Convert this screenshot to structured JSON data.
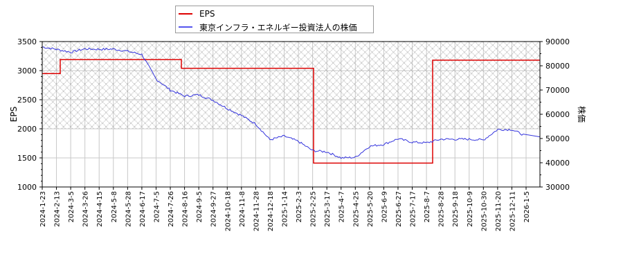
{
  "legend": {
    "items": [
      {
        "label": "EPS",
        "color": "#dd0000"
      },
      {
        "label": "東京インフラ・エネルギー投資法人の株価",
        "color": "#3333dd"
      }
    ]
  },
  "axes": {
    "left_label": "EPS",
    "right_label": "株価",
    "left_ticks": [
      "3500",
      "3000",
      "2500",
      "2000",
      "1500",
      "1000"
    ],
    "right_ticks": [
      "90000",
      "80000",
      "70000",
      "60000",
      "50000",
      "40000",
      "30000"
    ],
    "x_ticks": [
      "2024-1-23",
      "2024-2-13",
      "2024-3-5",
      "2024-3-26",
      "2024-4-15",
      "2024-5-8",
      "2024-5-28",
      "2024-6-17",
      "2024-7-5",
      "2024-7-26",
      "2024-8-16",
      "2024-9-5",
      "2024-9-27",
      "2024-10-18",
      "2024-11-8",
      "2024-11-28",
      "2024-12-18",
      "2025-1-14",
      "2025-2-3",
      "2025-2-25",
      "2025-3-17",
      "2025-4-7",
      "2025-4-25",
      "2025-5-20",
      "2025-6-9",
      "2025-6-27",
      "2025-7-17",
      "2025-8-7",
      "2025-8-28",
      "2025-9-18",
      "2025-10-9",
      "2025-10-30",
      "2025-11-20",
      "2025-12-11",
      "2026-1-5"
    ]
  },
  "chart_data": {
    "type": "line",
    "title": "",
    "xlabel": "",
    "ylabel": "EPS",
    "ylabel_right": "株価",
    "ylim": [
      1000,
      3500
    ],
    "ylim_right": [
      30000,
      90000
    ],
    "grid": true,
    "legend_position": "top-center",
    "shaded_region": {
      "axis": "left",
      "from": 2000,
      "to": 3500,
      "pattern": "crosshatch"
    },
    "categories": [
      "2024-1-23",
      "2024-2-13",
      "2024-3-5",
      "2024-3-26",
      "2024-4-15",
      "2024-5-8",
      "2024-5-28",
      "2024-6-17",
      "2024-7-5",
      "2024-7-26",
      "2024-8-16",
      "2024-9-5",
      "2024-9-27",
      "2024-10-18",
      "2024-11-8",
      "2024-11-28",
      "2024-12-18",
      "2025-1-14",
      "2025-2-3",
      "2025-2-25",
      "2025-3-17",
      "2025-4-7",
      "2025-4-25",
      "2025-5-20",
      "2025-6-9",
      "2025-6-27",
      "2025-7-17",
      "2025-8-7",
      "2025-8-28",
      "2025-9-18",
      "2025-10-9",
      "2025-10-30",
      "2025-11-20",
      "2025-12-11",
      "2026-1-5"
    ],
    "series": [
      {
        "name": "EPS",
        "axis": "left",
        "color": "#dd0000",
        "step": true,
        "values": [
          2950,
          2950,
          3190,
          3190,
          3190,
          3190,
          3190,
          3190,
          3190,
          3190,
          3040,
          3040,
          3040,
          3040,
          3035,
          3035,
          3040,
          3040,
          3040,
          1410,
          1410,
          1410,
          1410,
          1410,
          1410,
          1410,
          1410,
          1410,
          3180,
          3180,
          3175,
          3175,
          3170,
          3175,
          3180
        ]
      },
      {
        "name": "東京インフラ・エネルギー投資法人の株価",
        "axis": "right",
        "color": "#3333dd",
        "values": [
          87800,
          86800,
          85600,
          87000,
          86800,
          86900,
          86000,
          84700,
          74500,
          70000,
          67500,
          68000,
          65800,
          62400,
          59500,
          56000,
          49500,
          51000,
          48800,
          45000,
          44500,
          42000,
          42200,
          46800,
          47600,
          49900,
          48500,
          48200,
          49700,
          49700,
          49700,
          49400,
          53700,
          53700,
          51000
        ]
      }
    ]
  }
}
